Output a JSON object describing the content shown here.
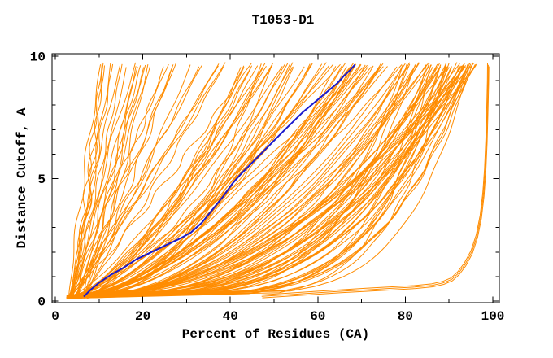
{
  "figure": {
    "title": "T1053-D1",
    "x_axis": {
      "label": "Percent of Residues (CA)"
    },
    "y_axis": {
      "label": "Distance Cutoff, A"
    }
  },
  "colors": {
    "ensemble": "#ff8c00",
    "highlight": "#1a1acd",
    "axis": "#000000",
    "background": "#ffffff"
  },
  "chart_data": {
    "type": "line",
    "title": "T1053-D1",
    "xlabel": "Percent of Residues (CA)",
    "ylabel": "Distance Cutoff, A",
    "xlim": [
      0,
      100
    ],
    "ylim": [
      0,
      10
    ],
    "x_major_ticks": [
      0,
      20,
      40,
      60,
      80,
      100
    ],
    "x_minor_step": 10,
    "y_major_ticks": [
      0,
      5,
      10
    ],
    "y_minor_step": 1,
    "grid": false,
    "legend": false,
    "description": "CASP-style cumulative distance-cutoff curves (GDT plot) for target T1053-D1. ~150 orange server-model curves rise from ~(3-10%, 0.2 A) to ~9.7 A; one highlighted dark-blue model; one outlier bundle runs nearly flat from 47% before climbing vertically near 99%.",
    "series": [
      {
        "name": "highlighted_model",
        "color": "#1a1acd",
        "width": 2,
        "points": [
          [
            6.5,
            0.18
          ],
          [
            8,
            0.45
          ],
          [
            10,
            0.75
          ],
          [
            12.5,
            1.05
          ],
          [
            15.5,
            1.35
          ],
          [
            18.5,
            1.7
          ],
          [
            22,
            2.0
          ],
          [
            25.5,
            2.3
          ],
          [
            28.5,
            2.55
          ],
          [
            31,
            2.8
          ],
          [
            33.5,
            3.2
          ],
          [
            36,
            3.75
          ],
          [
            38.5,
            4.3
          ],
          [
            40.5,
            4.8
          ],
          [
            42.5,
            5.2
          ],
          [
            45,
            5.65
          ],
          [
            47.5,
            6.1
          ],
          [
            50,
            6.55
          ],
          [
            52.5,
            7.0
          ],
          [
            54.5,
            7.35
          ],
          [
            56.5,
            7.7
          ],
          [
            58.5,
            8.0
          ],
          [
            60.5,
            8.3
          ],
          [
            62.5,
            8.6
          ],
          [
            64.5,
            8.9
          ],
          [
            66,
            9.2
          ],
          [
            67.5,
            9.45
          ],
          [
            68.5,
            9.65
          ]
        ]
      },
      {
        "name": "outlier_model_bundle",
        "color": "#ff8c00",
        "width": 1,
        "bundle_size": 3,
        "bundle_offset": [
          0.15,
          0.06
        ],
        "points": [
          [
            47,
            0.25
          ],
          [
            53,
            0.32
          ],
          [
            59,
            0.39
          ],
          [
            65,
            0.46
          ],
          [
            71,
            0.52
          ],
          [
            77,
            0.58
          ],
          [
            82,
            0.63
          ],
          [
            86,
            0.7
          ],
          [
            88.5,
            0.8
          ],
          [
            90.5,
            0.95
          ],
          [
            92,
            1.2
          ],
          [
            93.5,
            1.55
          ],
          [
            95,
            2.05
          ],
          [
            96.2,
            2.7
          ],
          [
            97.1,
            3.5
          ],
          [
            97.7,
            4.4
          ],
          [
            98.1,
            5.4
          ],
          [
            98.4,
            6.6
          ],
          [
            98.6,
            7.9
          ],
          [
            98.75,
            9.0
          ],
          [
            98.8,
            9.7
          ]
        ]
      },
      {
        "name": "model_ensemble",
        "color": "#ff8c00",
        "width": 1,
        "style": "procedural",
        "seed": 11,
        "start_y": 0.15,
        "top_y": 9.7,
        "groups": [
          {
            "count": 30,
            "start_x": [
              3,
              9
            ],
            "top_x": [
              9,
              45
            ],
            "shape_exp": [
              0.85,
              1.3
            ]
          },
          {
            "count": 55,
            "start_x": [
              3,
              9
            ],
            "top_x": [
              42,
              80
            ],
            "shape_exp": [
              1.25,
              2.3
            ]
          },
          {
            "count": 60,
            "start_x": [
              2.5,
              7
            ],
            "top_x": [
              78,
              97
            ],
            "shape_exp": [
              2.0,
              8.0
            ]
          }
        ]
      }
    ]
  }
}
